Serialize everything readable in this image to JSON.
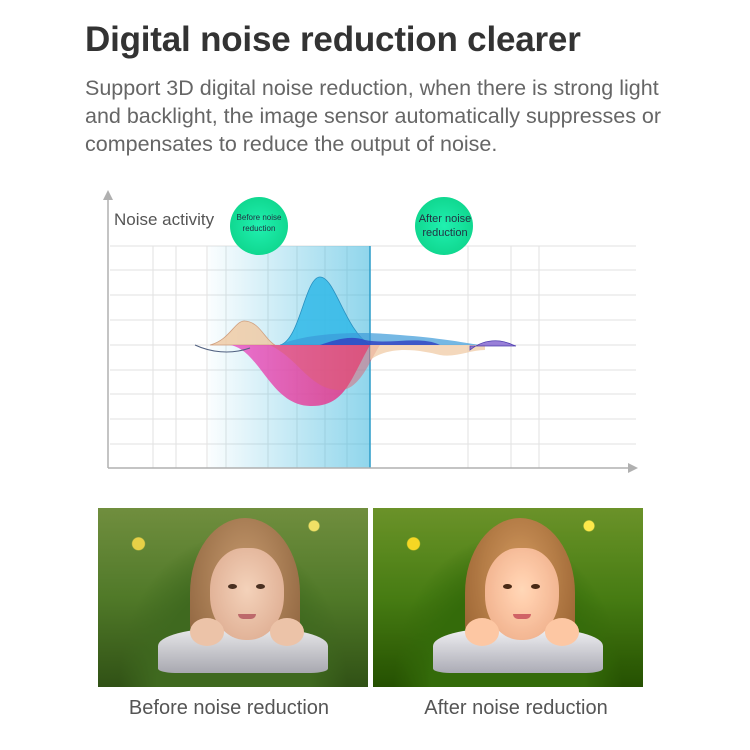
{
  "header": {
    "title": "Digital noise reduction clearer",
    "description": "Support 3D digital noise reduction, when there is strong light and backlight, the image sensor automatically suppresses or compensates to reduce the output of noise."
  },
  "diagram": {
    "y_axis_label": "Noise activity",
    "badge_before": "Before noise reduction",
    "badge_after": "After noise reduction",
    "badge_color": "#16e39a",
    "highlight_color": "#35b4dc"
  },
  "comparison": {
    "before_caption": "Before noise reduction",
    "after_caption": "After noise reduction"
  }
}
